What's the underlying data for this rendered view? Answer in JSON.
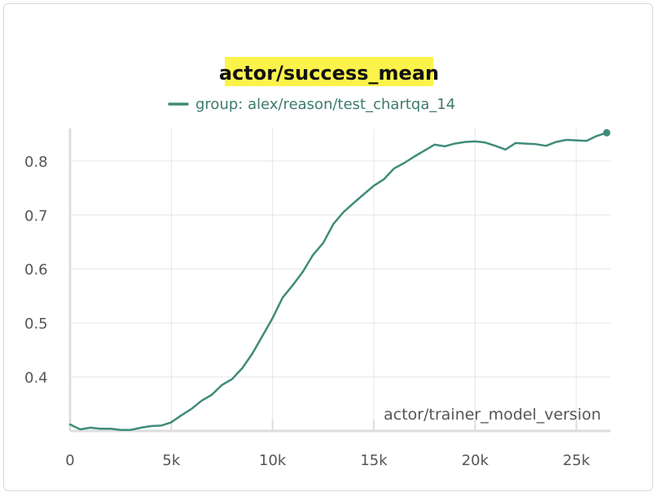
{
  "chart_data": {
    "type": "line",
    "title": "actor/success_mean",
    "xlabel": "actor/trainer_model_version",
    "ylabel": "",
    "xlim": [
      0,
      26700
    ],
    "ylim": [
      0.3,
      0.86
    ],
    "x_ticks": [
      0,
      5000,
      10000,
      15000,
      20000,
      25000
    ],
    "x_tick_labels": [
      "0",
      "5k",
      "10k",
      "15k",
      "20k",
      "25k"
    ],
    "y_ticks": [
      0.4,
      0.5,
      0.6,
      0.7,
      0.8
    ],
    "y_tick_labels": [
      "0.4",
      "0.5",
      "0.6",
      "0.7",
      "0.8"
    ],
    "grid": true,
    "legend_position": "top",
    "series": [
      {
        "name": "group: alex/reason/test_chartqa_14",
        "color": "#3f8b7a",
        "x": [
          0,
          500,
          1000,
          1500,
          2000,
          2500,
          3000,
          3500,
          4000,
          4500,
          5000,
          5500,
          6000,
          6500,
          7000,
          7500,
          8000,
          8500,
          9000,
          9500,
          10000,
          10500,
          11000,
          11500,
          12000,
          12500,
          13000,
          13500,
          14000,
          14500,
          15000,
          15500,
          16000,
          16500,
          17000,
          17500,
          18000,
          18500,
          19000,
          19500,
          20000,
          20500,
          21000,
          21500,
          22000,
          22500,
          23000,
          23500,
          24000,
          24500,
          25000,
          25500,
          26000,
          26500
        ],
        "values": [
          0.312,
          0.303,
          0.306,
          0.304,
          0.304,
          0.302,
          0.302,
          0.306,
          0.309,
          0.31,
          0.316,
          0.329,
          0.341,
          0.356,
          0.367,
          0.385,
          0.396,
          0.416,
          0.443,
          0.476,
          0.509,
          0.547,
          0.57,
          0.595,
          0.626,
          0.648,
          0.683,
          0.705,
          0.722,
          0.738,
          0.754,
          0.766,
          0.786,
          0.796,
          0.808,
          0.819,
          0.83,
          0.827,
          0.832,
          0.835,
          0.836,
          0.834,
          0.828,
          0.821,
          0.833,
          0.832,
          0.831,
          0.828,
          0.835,
          0.839,
          0.838,
          0.837,
          0.846,
          0.852
        ]
      }
    ]
  }
}
